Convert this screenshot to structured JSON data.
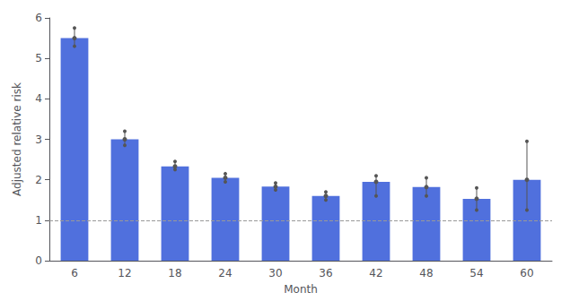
{
  "chart_data": {
    "type": "bar",
    "categories": [
      6,
      12,
      18,
      24,
      30,
      36,
      42,
      48,
      54,
      60
    ],
    "values": [
      5.5,
      3.0,
      2.33,
      2.05,
      1.83,
      1.6,
      1.95,
      1.82,
      1.53,
      2.0
    ],
    "ci_upper": [
      5.75,
      3.2,
      2.45,
      2.15,
      1.92,
      1.7,
      2.1,
      2.05,
      1.8,
      2.95
    ],
    "ci_lower": [
      5.3,
      2.85,
      2.25,
      1.95,
      1.75,
      1.5,
      1.6,
      1.6,
      1.25,
      1.25
    ],
    "reference_line": 1.0,
    "xlabel": "Month",
    "ylabel": "Adjusted relative risk",
    "ylim": [
      0,
      6
    ],
    "yticks": [
      0,
      1,
      2,
      3,
      4,
      5,
      6
    ],
    "grid": false
  }
}
